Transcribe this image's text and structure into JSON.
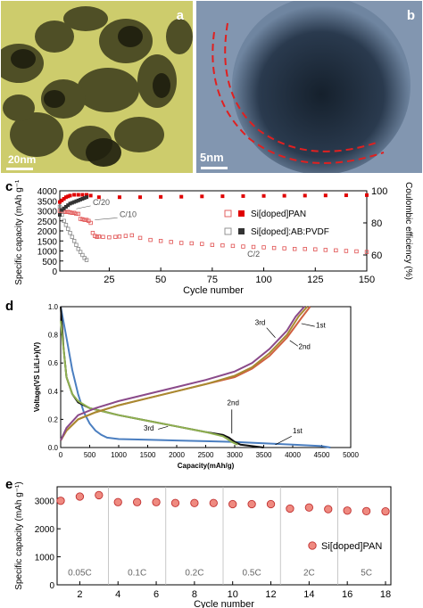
{
  "panels": {
    "a": {
      "label": "a",
      "scalebar": "20nm"
    },
    "b": {
      "label": "b",
      "scalebar": "5nm"
    },
    "c": {
      "label": "c"
    },
    "d": {
      "label": "d"
    },
    "e": {
      "label": "e"
    }
  },
  "chart_data": [
    {
      "panel": "c",
      "type": "scatter",
      "xlabel": "Cycle number",
      "ylabel": "Specific capacity (mAh g⁻¹)",
      "y2label": "Coulombic efficiency (%)",
      "xticks": [
        25,
        50,
        75,
        100,
        125,
        150
      ],
      "yticks": [
        0,
        500,
        1000,
        1500,
        2000,
        2500,
        3000,
        3500,
        4000
      ],
      "y2ticks": [
        60,
        80,
        100
      ],
      "xlim": [
        1,
        150
      ],
      "ylim": [
        0,
        4000
      ],
      "y2lim": [
        50,
        100
      ],
      "legend": [
        {
          "name": "Si[doped]PAN",
          "open_color": "#e05050",
          "filled_color": "#e00000"
        },
        {
          "name": "Si[doped]:AB:PVDF",
          "open_color": "#888888",
          "filled_color": "#333333"
        }
      ],
      "annotations": [
        "C/20",
        "C/10",
        "C/2"
      ],
      "series": [
        {
          "name": "Si[doped]PAN capacity",
          "marker": "open-square",
          "color": "#e05050",
          "x": [
            1,
            2,
            3,
            4,
            5,
            6,
            7,
            8,
            9,
            10,
            11,
            12,
            13,
            14,
            15,
            16,
            17,
            18,
            19,
            20,
            22,
            25,
            28,
            30,
            33,
            36,
            40,
            45,
            50,
            55,
            60,
            65,
            70,
            75,
            80,
            85,
            90,
            95,
            100,
            105,
            110,
            115,
            120,
            125,
            130,
            135,
            140,
            145,
            150
          ],
          "y": [
            3000,
            2950,
            2950,
            2950,
            2950,
            2920,
            2900,
            2900,
            2850,
            2850,
            2600,
            2580,
            2550,
            2550,
            2500,
            2400,
            1900,
            1750,
            1700,
            1720,
            1700,
            1680,
            1700,
            1720,
            1750,
            1780,
            1650,
            1550,
            1500,
            1450,
            1400,
            1380,
            1350,
            1300,
            1280,
            1250,
            1220,
            1200,
            1180,
            1150,
            1130,
            1100,
            1100,
            1080,
            1050,
            1030,
            1000,
            980,
            950
          ]
        },
        {
          "name": "Si[doped]:AB:PVDF capacity",
          "marker": "open-square",
          "color": "#888888",
          "x": [
            1,
            2,
            3,
            4,
            5,
            6,
            7,
            8,
            9,
            10,
            11,
            12,
            13,
            14
          ],
          "y": [
            3200,
            2800,
            2500,
            2300,
            2100,
            1900,
            1700,
            1500,
            1300,
            1100,
            950,
            800,
            650,
            550
          ]
        },
        {
          "name": "Si[doped]PAN efficiency",
          "marker": "filled-square",
          "color": "#e00000",
          "x": [
            1,
            2,
            3,
            4,
            5,
            6,
            8,
            10,
            12,
            14,
            16,
            20,
            30,
            40,
            50,
            60,
            70,
            80,
            90,
            100,
            110,
            120,
            130,
            140,
            150
          ],
          "y": [
            93,
            94,
            95,
            96,
            96.5,
            97,
            97.5,
            97.5,
            97.5,
            97.5,
            97,
            96,
            96,
            96,
            96.2,
            96.3,
            96.5,
            96.6,
            96.7,
            96.8,
            96.9,
            97,
            97.1,
            97.2,
            97.3
          ]
        },
        {
          "name": "Si[doped]:AB:PVDF efficiency",
          "marker": "filled-square",
          "color": "#333333",
          "x": [
            1,
            2,
            3,
            4,
            5,
            6,
            7,
            8,
            9,
            10,
            11,
            12,
            13,
            14
          ],
          "y": [
            85,
            88,
            89,
            90,
            91,
            92,
            92.5,
            93,
            93.5,
            94,
            94.5,
            95,
            95.5,
            96
          ]
        }
      ]
    },
    {
      "panel": "d",
      "type": "line",
      "xlabel": "Capacity(mAh/g)",
      "ylabel": "Voltage(VS Li/Li+)(V)",
      "xticks": [
        0,
        500,
        1000,
        1500,
        2000,
        2500,
        3000,
        3500,
        4000,
        4500,
        5000
      ],
      "yticks": [
        0.0,
        0.2,
        0.4,
        0.6,
        0.8,
        1.0
      ],
      "xlim": [
        0,
        5000
      ],
      "ylim": [
        0,
        1.0
      ],
      "annotations": [
        "3rd",
        "1st",
        "2nd",
        "2nd",
        "3rd",
        "1st"
      ],
      "series": [
        {
          "name": "1st discharge",
          "color": "#4a7ec0",
          "x": [
            0,
            100,
            200,
            300,
            400,
            500,
            600,
            700,
            800,
            1000,
            1500,
            2000,
            2500,
            3000,
            3500,
            4000,
            4500,
            4650
          ],
          "y": [
            1.0,
            0.78,
            0.55,
            0.38,
            0.25,
            0.17,
            0.12,
            0.09,
            0.07,
            0.06,
            0.055,
            0.05,
            0.045,
            0.04,
            0.03,
            0.02,
            0.01,
            0.0
          ]
        },
        {
          "name": "2nd discharge",
          "color": "#111111",
          "x": [
            0,
            50,
            100,
            200,
            300,
            500,
            800,
            1000,
            1500,
            2000,
            2500,
            2800,
            2900,
            3000,
            3100,
            3500
          ],
          "y": [
            1.0,
            0.7,
            0.5,
            0.38,
            0.32,
            0.28,
            0.25,
            0.23,
            0.19,
            0.15,
            0.11,
            0.09,
            0.07,
            0.04,
            0.02,
            0.0
          ]
        },
        {
          "name": "3rd discharge",
          "color": "#8fb050",
          "x": [
            0,
            100,
            200,
            300,
            500,
            800,
            1000,
            1500,
            2000,
            2500,
            2800,
            2950,
            3050
          ],
          "y": [
            0.9,
            0.5,
            0.38,
            0.33,
            0.28,
            0.25,
            0.23,
            0.19,
            0.15,
            0.11,
            0.08,
            0.04,
            0.02
          ]
        },
        {
          "name": "1st charge",
          "color": "#d06040",
          "x": [
            0,
            100,
            300,
            600,
            1000,
            1500,
            2000,
            2500,
            3000,
            3300,
            3600,
            3900,
            4150,
            4300
          ],
          "y": [
            0.05,
            0.12,
            0.2,
            0.25,
            0.3,
            0.35,
            0.4,
            0.45,
            0.5,
            0.56,
            0.65,
            0.78,
            0.92,
            1.0
          ]
        },
        {
          "name": "2nd charge",
          "color": "#a88a30",
          "x": [
            0,
            100,
            300,
            600,
            1000,
            1500,
            2000,
            2500,
            3000,
            3300,
            3600,
            3900,
            4100,
            4250
          ],
          "y": [
            0.05,
            0.12,
            0.2,
            0.25,
            0.3,
            0.35,
            0.4,
            0.45,
            0.51,
            0.57,
            0.67,
            0.8,
            0.93,
            1.0
          ]
        },
        {
          "name": "3rd charge",
          "color": "#8a4a8a",
          "x": [
            0,
            100,
            300,
            600,
            1000,
            1500,
            2000,
            2500,
            3000,
            3300,
            3600,
            3900,
            4050,
            4200
          ],
          "y": [
            0.05,
            0.14,
            0.23,
            0.28,
            0.33,
            0.38,
            0.43,
            0.48,
            0.54,
            0.6,
            0.7,
            0.83,
            0.93,
            1.0
          ]
        }
      ]
    },
    {
      "panel": "e",
      "type": "scatter",
      "xlabel": "Cycle number",
      "ylabel": "Specific capacity (mAh g⁻¹)",
      "xticks": [
        2,
        4,
        6,
        8,
        10,
        12,
        14,
        16,
        18
      ],
      "yticks": [
        0,
        1000,
        2000,
        3000
      ],
      "xlim": [
        1,
        18
      ],
      "ylim": [
        0,
        3500
      ],
      "legend": [
        {
          "name": "Si[doped]PAN",
          "color": "#e86060"
        }
      ],
      "rate_labels": [
        "0.05C",
        "0.1C",
        "0.2C",
        "0.5C",
        "2C",
        "5C"
      ],
      "series": [
        {
          "name": "Si[doped]PAN",
          "x": [
            1,
            2,
            3,
            4,
            5,
            6,
            7,
            8,
            9,
            10,
            11,
            12,
            13,
            14,
            15,
            16,
            17,
            18
          ],
          "y": [
            3000,
            3150,
            3200,
            2950,
            2950,
            2950,
            2920,
            2920,
            2920,
            2880,
            2880,
            2880,
            2720,
            2760,
            2700,
            2650,
            2630,
            2620
          ]
        }
      ]
    }
  ]
}
